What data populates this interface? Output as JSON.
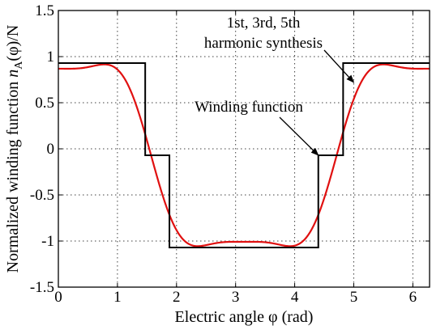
{
  "chart_data": {
    "type": "line",
    "title": "",
    "xlabel": "Electric angle φ (rad)",
    "ylabel": "Normalized winding function n_A(φ)/N",
    "xlim": [
      0,
      6.283
    ],
    "ylim": [
      -1.5,
      1.5
    ],
    "xticks": [
      0,
      1,
      2,
      3,
      4,
      5,
      6
    ],
    "yticks": [
      1.5,
      1,
      0.5,
      0,
      -0.5,
      -1,
      -1.5
    ],
    "ytick_labels": [
      "1.5",
      "1",
      "0.5",
      "0",
      "-0.5",
      "-1",
      "-1.5"
    ],
    "grid": true,
    "series": [
      {
        "name": "Winding function",
        "color": "#000000",
        "step": true,
        "x": [
          0,
          1.47,
          1.47,
          1.88,
          1.88,
          4.4,
          4.4,
          4.82,
          4.82,
          6.283
        ],
        "y": [
          0.93,
          0.93,
          -0.07,
          -0.07,
          -1.07,
          -1.07,
          -0.07,
          -0.07,
          0.93,
          0.93
        ]
      },
      {
        "name": "1st, 3rd, 5th harmonic synthesis",
        "color": "#e01010",
        "harmonics": {
          "offset": -0.07,
          "center": 3.14,
          "amplitudes": [
            -1.1664,
            0.2865,
            -0.0591
          ]
        }
      }
    ],
    "annotations": [
      {
        "lines": [
          "1st, 3rd, 5th",
          "harmonic synthesis"
        ],
        "arrow_to": [
          5.0,
          0.72
        ]
      },
      {
        "lines": [
          "Winding function"
        ],
        "arrow_to": [
          4.4,
          -0.07
        ]
      }
    ]
  }
}
